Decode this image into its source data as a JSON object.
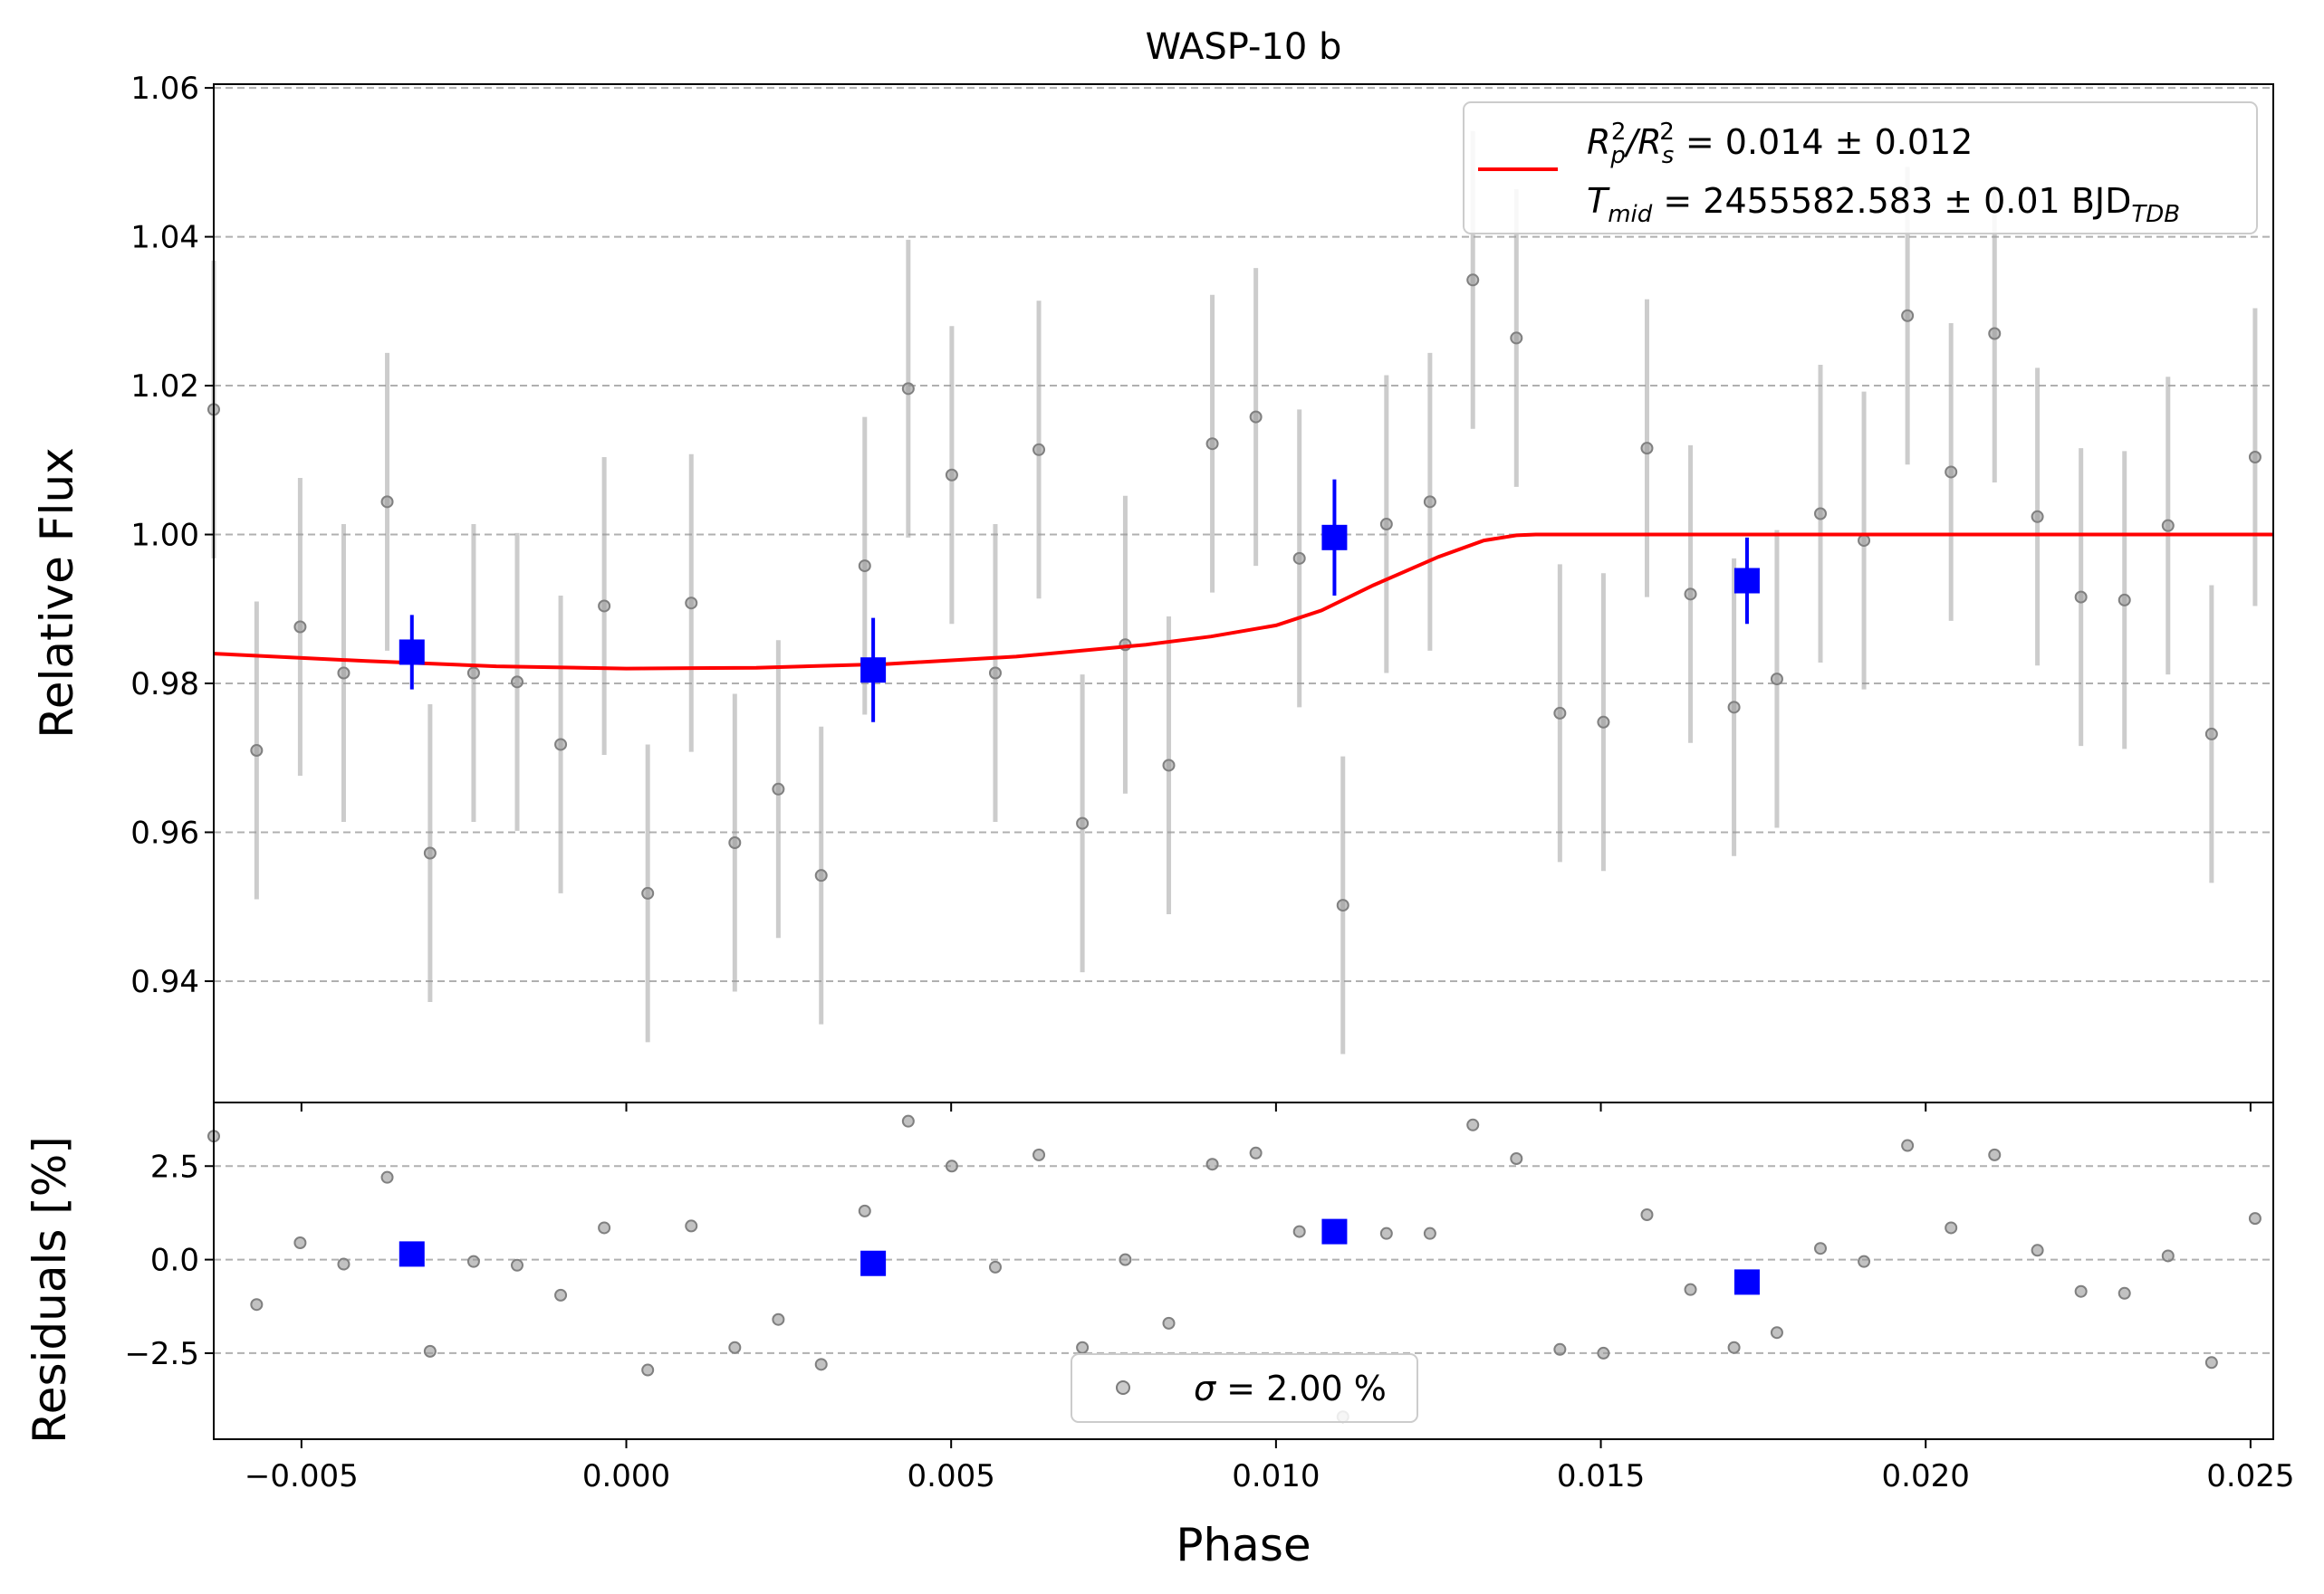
{
  "chart_data": [
    {
      "type": "scatter",
      "title": "WASP-10 b",
      "xlabel": "",
      "ylabel": "Relative Flux",
      "xlim": [
        -0.00635,
        0.02535
      ],
      "ylim": [
        0.9237,
        1.0605
      ],
      "grid": "y-dashed",
      "xticks": [
        -0.005,
        0.0,
        0.005,
        0.01,
        0.015,
        0.02,
        0.025
      ],
      "yticks": [
        0.94,
        0.96,
        0.98,
        1.0,
        1.02,
        1.04,
        1.06
      ],
      "ytick_labels": [
        "0.94",
        "0.96",
        "0.98",
        "1.00",
        "1.02",
        "1.04",
        "1.06"
      ],
      "legend": {
        "placement": "upper-right",
        "line1": {
          "prefix": "R",
          "sub1": "p",
          "sup1": "2",
          "mid": "/R",
          "sub2": "s",
          "sup2": "2",
          "rest": " = 0.014 ± 0.012"
        },
        "line2": {
          "prefix": "T",
          "sub": "mid",
          "rest": " = 2455582.583 ± 0.01 BJD",
          "sub2": "TDB"
        }
      },
      "series": [
        {
          "kind": "data",
          "color": "#999999",
          "x": [
            -0.00635,
            -0.00569,
            -0.00502,
            -0.00435,
            -0.00368,
            -0.00302,
            -0.00235,
            -0.00168,
            -0.00101,
            -0.00034,
            0.00033,
            0.001,
            0.00167,
            0.00234,
            0.003,
            0.00367,
            0.00434,
            0.00501,
            0.00568,
            0.00635,
            0.00702,
            0.00768,
            0.00835,
            0.00902,
            0.00969,
            0.01036,
            0.01103,
            0.0117,
            0.01237,
            0.01303,
            0.0137,
            0.01437,
            0.01504,
            0.01571,
            0.01638,
            0.01705,
            0.01771,
            0.01838,
            0.01905,
            0.01972,
            0.02039,
            0.02106,
            0.02172,
            0.02239,
            0.02306,
            0.02373,
            0.0244,
            0.02507
          ],
          "y": [
            1.0168,
            0.971,
            0.9876,
            0.9814,
            1.0044,
            0.9572,
            0.9814,
            0.9802,
            0.9718,
            0.9904,
            0.9518,
            0.9908,
            0.9586,
            0.9658,
            0.9542,
            0.9958,
            1.0196,
            1.008,
            0.9814,
            1.0114,
            0.9612,
            0.9852,
            0.969,
            1.0122,
            1.0158,
            0.9968,
            0.9502,
            1.0014,
            1.0044,
            1.0342,
            1.0264,
            0.976,
            0.9748,
            1.0116,
            0.992,
            0.9768,
            0.9806,
            1.0028,
            0.9992,
            1.0294,
            1.0084,
            1.027,
            1.0024,
            0.9916,
            0.9912,
            1.0012,
            0.9732,
            1.0104
          ],
          "yerr": 0.02
        },
        {
          "kind": "binned",
          "color": "#0000ff",
          "x": [
            -0.0033,
            0.0038,
            0.0109,
            0.01725
          ],
          "y": [
            0.9842,
            0.9818,
            0.9996,
            0.9938
          ],
          "yerr": [
            0.005,
            0.007,
            0.0078,
            0.0058
          ]
        },
        {
          "kind": "model",
          "color": "#ff0000",
          "x": [
            -0.00635,
            -0.004,
            -0.002,
            0.0,
            0.002,
            0.004,
            0.006,
            0.008,
            0.009,
            0.01,
            0.0107,
            0.0115,
            0.0125,
            0.0132,
            0.0137,
            0.014,
            0.02,
            0.02535
          ],
          "y": [
            0.984,
            0.983,
            0.9823,
            0.982,
            0.9821,
            0.9826,
            0.9836,
            0.9852,
            0.9863,
            0.9878,
            0.9898,
            0.9932,
            0.997,
            0.9992,
            0.9999,
            1.0,
            1.0,
            1.0
          ]
        }
      ]
    },
    {
      "type": "scatter",
      "title": "",
      "xlabel": "Phase",
      "ylabel": "Residuals [%]",
      "xlim": [
        -0.00635,
        0.02535
      ],
      "ylim": [
        -4.8,
        4.2
      ],
      "grid": "y-dashed",
      "xticks": [
        -0.005,
        0.0,
        0.005,
        0.01,
        0.015,
        0.02,
        0.025
      ],
      "xtick_labels": [
        "−0.005",
        "0.000",
        "0.005",
        "0.010",
        "0.015",
        "0.020",
        "0.025"
      ],
      "yticks": [
        -2.5,
        0.0,
        2.5
      ],
      "ytick_labels": [
        "−2.5",
        "0.0",
        "2.5"
      ],
      "legend": {
        "placement": "lower-center",
        "sigma_symbol": "σ",
        "text": " = 2.00 %"
      },
      "series": [
        {
          "kind": "data",
          "color": "#999999",
          "x": [
            -0.00635,
            -0.00569,
            -0.00502,
            -0.00435,
            -0.00368,
            -0.00302,
            -0.00235,
            -0.00168,
            -0.00101,
            -0.00034,
            0.00033,
            0.001,
            0.00167,
            0.00234,
            0.003,
            0.00367,
            0.00434,
            0.00501,
            0.00568,
            0.00635,
            0.00702,
            0.00768,
            0.00835,
            0.00902,
            0.00969,
            0.01036,
            0.01103,
            0.0117,
            0.01237,
            0.01303,
            0.0137,
            0.01437,
            0.01504,
            0.01571,
            0.01638,
            0.01705,
            0.01771,
            0.01838,
            0.01905,
            0.01972,
            0.02039,
            0.02106,
            0.02172,
            0.02239,
            0.02306,
            0.02373,
            0.0244,
            0.02507
          ],
          "y": [
            3.3,
            -1.2,
            0.45,
            -0.12,
            2.2,
            -2.45,
            -0.05,
            -0.15,
            -0.95,
            0.85,
            -2.95,
            0.9,
            -2.35,
            -1.6,
            -2.8,
            1.3,
            3.7,
            2.5,
            -0.2,
            2.8,
            -2.35,
            0.0,
            -1.7,
            2.55,
            2.85,
            0.75,
            -4.2,
            0.7,
            0.7,
            3.6,
            2.7,
            -2.4,
            -2.5,
            1.2,
            -0.8,
            -2.35,
            -1.95,
            0.3,
            -0.05,
            3.05,
            0.85,
            2.8,
            0.25,
            -0.85,
            -0.9,
            0.1,
            -2.75,
            1.1
          ]
        },
        {
          "kind": "binned",
          "color": "#0000ff",
          "x": [
            -0.0033,
            0.0038,
            0.0109,
            0.01725
          ],
          "y": [
            0.15,
            -0.1,
            0.75,
            -0.6
          ]
        }
      ]
    }
  ]
}
